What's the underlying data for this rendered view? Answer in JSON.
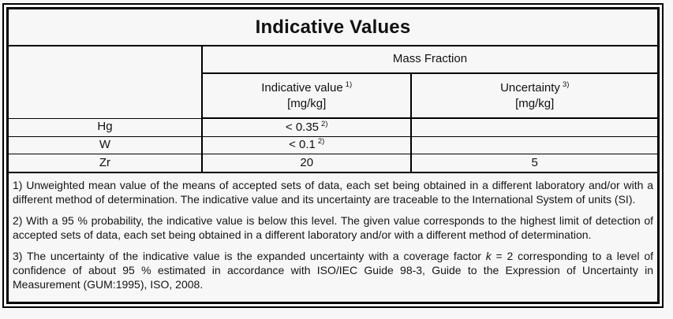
{
  "page": {
    "background": "#f7f7f7",
    "border_color": "#000000",
    "text_color": "#111111"
  },
  "title": "Indicative Values",
  "table": {
    "group_header": "Mass Fraction",
    "columns": [
      {
        "label": "Indicative value",
        "footnote_ref": "1)",
        "unit": "[mg/kg]"
      },
      {
        "label": "Uncertainty",
        "footnote_ref": "3)",
        "unit": "[mg/kg]"
      }
    ],
    "rows": [
      {
        "element": "Hg",
        "indicative_value": "< 0.35",
        "value_footnote_ref": "2)",
        "uncertainty": ""
      },
      {
        "element": "W",
        "indicative_value": "< 0.1",
        "value_footnote_ref": "2)",
        "uncertainty": ""
      },
      {
        "element": "Zr",
        "indicative_value": "20",
        "value_footnote_ref": "",
        "uncertainty": "5"
      }
    ]
  },
  "footnotes": [
    {
      "segments": [
        {
          "t": "1) Unweighted mean value of the means of accepted sets of data, each set being obtained in a different laboratory and/or with a different method of determination. The indicative value and its uncertainty are traceable to the International System of units (SI)."
        }
      ]
    },
    {
      "segments": [
        {
          "t": "2) With a 95 % probability, the indicative value is below this level. The given value corresponds to the highest limit of detection of accepted sets of data, each set being obtained in a different laboratory and/or with a different method of determination."
        }
      ]
    },
    {
      "segments": [
        {
          "t": "3) The uncertainty of the indicative value is the expanded uncertainty with a coverage factor "
        },
        {
          "t": "k",
          "italic": true
        },
        {
          "t": " = 2 corresponding to a level of confidence of about 95 % estimated in accordance with ISO/IEC Guide 98-3, Guide to the Expression of Uncertainty in Measurement (GUM:1995), ISO, 2008."
        }
      ]
    }
  ]
}
